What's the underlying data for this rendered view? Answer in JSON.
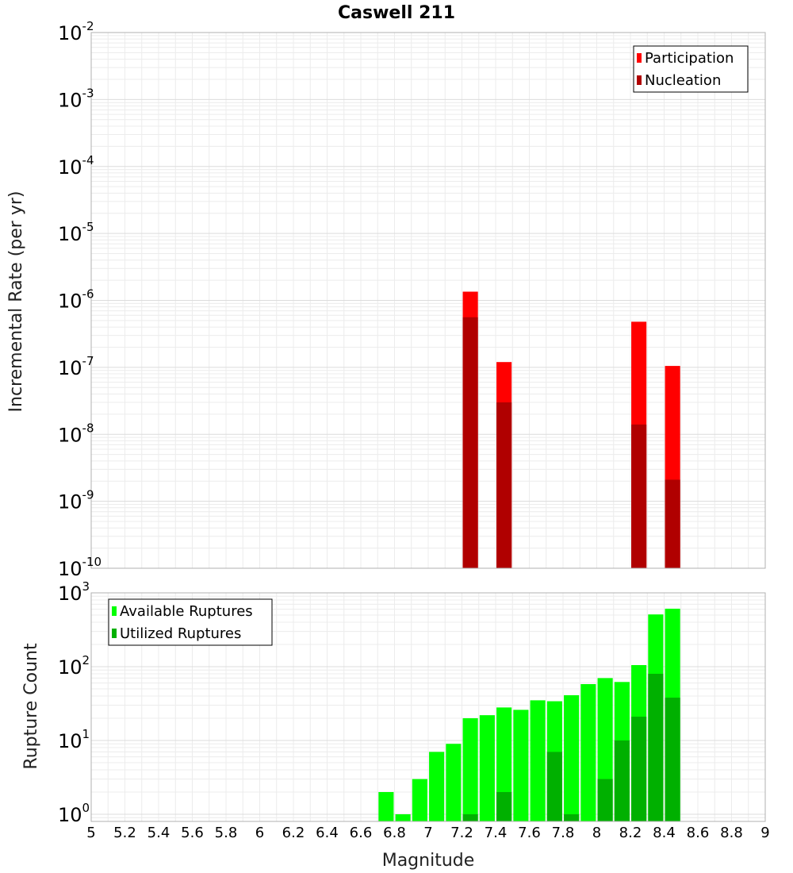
{
  "chart_data": [
    {
      "type": "bar",
      "title": "Caswell 211",
      "ylabel": "Incremental Rate (per yr)",
      "yscale": "log",
      "ylim": [
        1e-10,
        0.01
      ],
      "xlim": [
        5,
        9
      ],
      "grid": true,
      "legend_position": "top-right",
      "yticks": [
        {
          "base": "10",
          "exp": "-2",
          "value": 0.01
        },
        {
          "base": "10",
          "exp": "-3",
          "value": 0.001
        },
        {
          "base": "10",
          "exp": "-4",
          "value": 0.0001
        },
        {
          "base": "10",
          "exp": "-5",
          "value": 1e-05
        },
        {
          "base": "10",
          "exp": "-6",
          "value": 1e-06
        },
        {
          "base": "10",
          "exp": "-7",
          "value": 1e-07
        },
        {
          "base": "10",
          "exp": "-8",
          "value": 1e-08
        },
        {
          "base": "10",
          "exp": "-9",
          "value": 1e-09
        },
        {
          "base": "10",
          "exp": "-10",
          "value": 1e-10
        }
      ],
      "series": [
        {
          "name": "Participation",
          "color": "#ff0000",
          "points": [
            {
              "x": 7.25,
              "y": 1.35e-06
            },
            {
              "x": 7.45,
              "y": 1.2e-07
            },
            {
              "x": 8.25,
              "y": 4.8e-07
            },
            {
              "x": 8.45,
              "y": 1.05e-07
            }
          ]
        },
        {
          "name": "Nucleation",
          "color": "#b00000",
          "points": [
            {
              "x": 7.25,
              "y": 5.6e-07
            },
            {
              "x": 7.45,
              "y": 3e-08
            },
            {
              "x": 8.25,
              "y": 1.4e-08
            },
            {
              "x": 8.45,
              "y": 2.1e-09
            }
          ]
        }
      ]
    },
    {
      "type": "bar",
      "xlabel": "Magnitude",
      "ylabel": "Rupture Count",
      "yscale": "log",
      "ylim": [
        0.8,
        1000
      ],
      "xlim": [
        5,
        9
      ],
      "grid": true,
      "legend_position": "top-left",
      "yticks": [
        {
          "base": "10",
          "exp": "3",
          "value": 1000
        },
        {
          "base": "10",
          "exp": "2",
          "value": 100
        },
        {
          "base": "10",
          "exp": "1",
          "value": 10
        },
        {
          "base": "10",
          "exp": "0",
          "value": 1
        }
      ],
      "xticks": [
        "5",
        "5.2",
        "5.4",
        "5.6",
        "5.8",
        "6",
        "6.2",
        "6.4",
        "6.6",
        "6.8",
        "7",
        "7.2",
        "7.4",
        "7.6",
        "7.8",
        "8",
        "8.2",
        "8.4",
        "8.6",
        "8.8",
        "9"
      ],
      "series": [
        {
          "name": "Available Ruptures",
          "color": "#00ff00",
          "points": [
            {
              "x": 6.75,
              "y": 2
            },
            {
              "x": 6.85,
              "y": 1
            },
            {
              "x": 6.95,
              "y": 3
            },
            {
              "x": 7.05,
              "y": 7
            },
            {
              "x": 7.15,
              "y": 9
            },
            {
              "x": 7.25,
              "y": 20
            },
            {
              "x": 7.35,
              "y": 22
            },
            {
              "x": 7.45,
              "y": 28
            },
            {
              "x": 7.55,
              "y": 26
            },
            {
              "x": 7.65,
              "y": 35
            },
            {
              "x": 7.75,
              "y": 34
            },
            {
              "x": 7.85,
              "y": 41
            },
            {
              "x": 7.95,
              "y": 58
            },
            {
              "x": 8.05,
              "y": 70
            },
            {
              "x": 8.15,
              "y": 62
            },
            {
              "x": 8.25,
              "y": 105
            },
            {
              "x": 8.35,
              "y": 510
            },
            {
              "x": 8.45,
              "y": 610
            }
          ]
        },
        {
          "name": "Utilized Ruptures",
          "color": "#00b000",
          "points": [
            {
              "x": 7.25,
              "y": 1
            },
            {
              "x": 7.45,
              "y": 2
            },
            {
              "x": 7.75,
              "y": 7
            },
            {
              "x": 7.85,
              "y": 1
            },
            {
              "x": 8.05,
              "y": 3
            },
            {
              "x": 8.15,
              "y": 10
            },
            {
              "x": 8.25,
              "y": 21
            },
            {
              "x": 8.35,
              "y": 80
            },
            {
              "x": 8.45,
              "y": 38
            }
          ]
        }
      ]
    }
  ]
}
